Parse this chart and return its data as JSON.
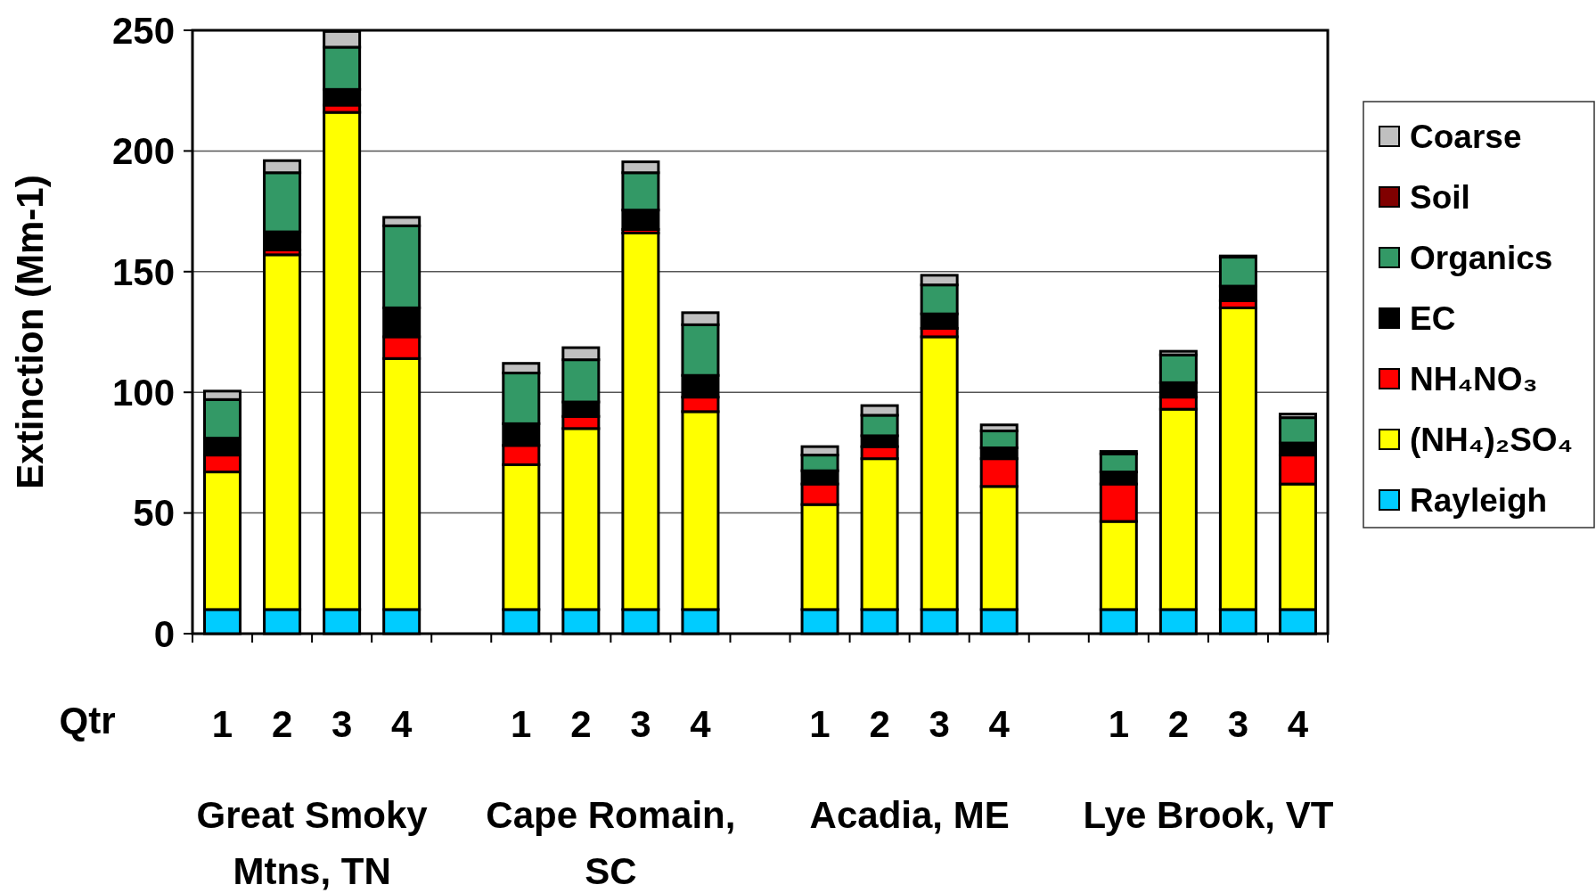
{
  "chart_data": {
    "type": "bar",
    "stacked": true,
    "ylabel": "Extinction (Mm-1)",
    "xlabel": "Qtr",
    "categories": [
      "1",
      "2",
      "3",
      "4",
      null,
      "1",
      "2",
      "3",
      "4",
      null,
      "1",
      "2",
      "3",
      "4",
      null,
      "1",
      "2",
      "3",
      "4"
    ],
    "series": [
      {
        "name": "Rayleigh",
        "color": "#00ccff",
        "values": [
          10,
          10,
          10,
          10,
          null,
          10,
          10,
          10,
          10,
          null,
          10,
          10,
          10,
          10,
          null,
          10,
          10,
          10,
          10
        ]
      },
      {
        "name": "(NH₄)₂SO₄",
        "color": "#ffff00",
        "values": [
          57,
          147,
          206,
          104,
          null,
          60,
          75,
          156,
          82,
          null,
          43.5,
          62.5,
          113,
          51,
          null,
          36.5,
          83,
          125,
          52
        ]
      },
      {
        "name": "NH₄NO₃",
        "color": "#ff0000",
        "values": [
          7,
          2,
          3,
          9,
          null,
          8,
          5,
          1.5,
          6,
          null,
          8.5,
          5,
          3.5,
          11.5,
          null,
          15.5,
          5,
          3,
          12
        ]
      },
      {
        "name": "EC",
        "color": "#000000",
        "values": [
          7,
          7.5,
          6.5,
          12,
          null,
          9,
          6,
          8,
          9,
          null,
          5.5,
          4.5,
          6,
          4.5,
          null,
          5,
          6,
          6,
          5
        ]
      },
      {
        "name": "Organics",
        "color": "#339966",
        "values": [
          16,
          24.5,
          17.5,
          34,
          null,
          21,
          17.5,
          15.5,
          21,
          null,
          6.5,
          8.5,
          12,
          7,
          null,
          7.5,
          11.5,
          12,
          10.5
        ]
      },
      {
        "name": "Soil",
        "color": "#800000",
        "values": [
          null,
          null,
          null,
          null,
          null,
          null,
          null,
          null,
          null,
          null,
          null,
          null,
          null,
          null,
          null,
          null,
          null,
          null,
          null
        ]
      },
      {
        "name": "Coarse",
        "color": "#c0c0c0",
        "values": [
          3.5,
          5,
          6.5,
          3.5,
          null,
          4,
          5,
          4.5,
          5,
          null,
          3.5,
          4,
          4,
          2.5,
          null,
          1,
          1.5,
          0.5,
          1.5
        ]
      }
    ],
    "ylim": [
      0,
      250
    ],
    "yticks": [
      0,
      50,
      100,
      150,
      200,
      250
    ],
    "grid": "y",
    "legend": "right",
    "annotations": [
      "Great Smoky Mtns, TN",
      "Cape Romain, SC",
      "Acadia, ME",
      "Lye Brook, VT"
    ]
  }
}
